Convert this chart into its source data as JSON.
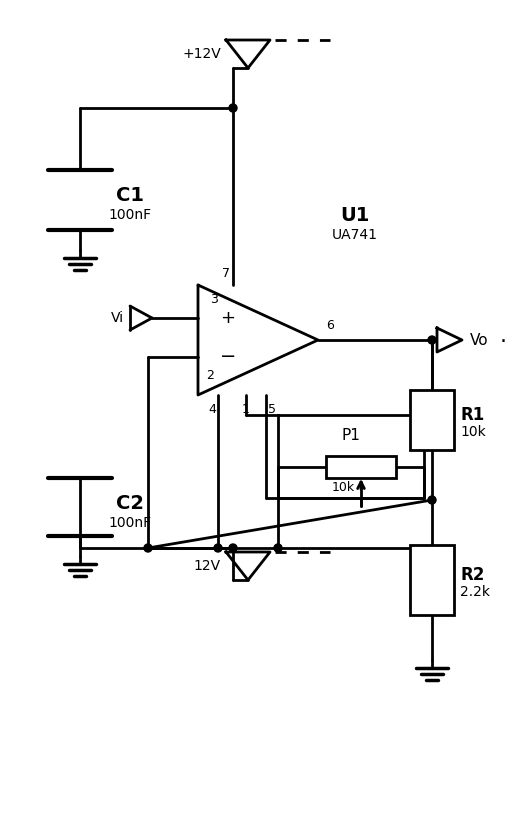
{
  "bg_color": "#ffffff",
  "line_color": "#000000",
  "lw": 2.0,
  "figsize": [
    5.2,
    8.23
  ],
  "dpi": 100,
  "labels": {
    "plus12v": "+12V",
    "minus12v": "12V",
    "vi": "Vi",
    "vo": "Vo",
    "c1": "C1",
    "c1val": "100nF",
    "c2": "C2",
    "c2val": "100nF",
    "u1": "U1",
    "u1val": "UA741",
    "r1": "R1",
    "r1val": "10k",
    "r2": "R2",
    "r2val": "2.2k",
    "p1": "P1",
    "p1val": "10k",
    "pin3": "3",
    "pin2": "2",
    "pin7": "7",
    "pin4": "4",
    "pin1": "1",
    "pin5": "5",
    "pin6": "6",
    "plus_sign": "+",
    "minus_sign": "−",
    "vo_dot": "·"
  }
}
